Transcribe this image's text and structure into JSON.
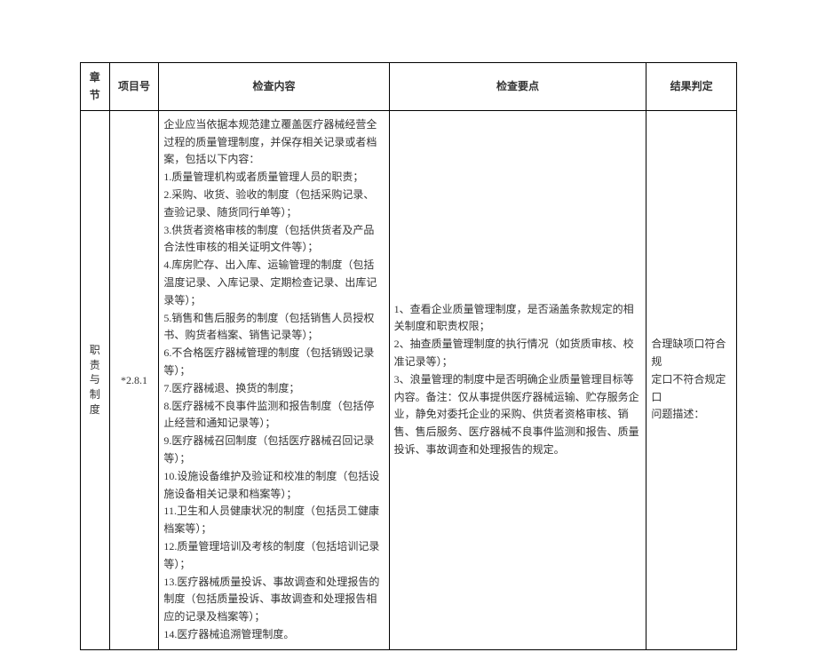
{
  "headers": {
    "chapter": "章节",
    "itemNo": "项目号",
    "content": "检查内容",
    "points": "检查要点",
    "result": "结果判定"
  },
  "row": {
    "chapter_c1": "职",
    "chapter_c2": "责",
    "chapter_c3": "与",
    "chapter_c4": "制",
    "chapter_c5": "度",
    "itemNo": "*2.8.1",
    "content_intro": "企业应当依据本规范建立覆盖医疗器械经营全过程的质量管理制度，并保存相关记录或者档案，包括以下内容：",
    "content_1": "1.质量管理机构或者质量管理人员的职责；",
    "content_2": "2.采购、收货、验收的制度（包括采购记录、查验记录、随货同行单等）；",
    "content_3": "3.供货者资格审核的制度（包括供货者及产品合法性审核的相关证明文件等）；",
    "content_4": "4.库房贮存、出入库、运输管理的制度（包括温度记录、入库记录、定期检查记录、出库记录等）；",
    "content_5": "5.销售和售后服务的制度（包括销售人员授权书、购货者档案、销售记录等）；",
    "content_6": "6.不合格医疗器械管理的制度（包括销毁记录等）；",
    "content_7": "7.医疗器械退、换货的制度；",
    "content_8": "8.医疗器械不良事件监测和报告制度（包括停止经营和通知记录等）；",
    "content_9": "9.医疗器械召回制度（包括医疗器械召回记录等）；",
    "content_10": "10.设施设备维护及验证和校准的制度（包括设施设备相关记录和档案等）；",
    "content_11": "11.卫生和人员健康状况的制度（包括员工健康档案等）；",
    "content_12": "12.质量管理培训及考核的制度（包括培训记录等）；",
    "content_13": "13.医疗器械质量投诉、事故调查和处理报告的制度（包括质量投诉、事故调查和处理报告相应的记录及档案等）；",
    "content_14": "14.医疗器械追溯管理制度。",
    "points_1": "1、查看企业质量管理制度，是否涵盖条款规定的相关制度和职责权限；",
    "points_2": "2、抽查质量管理制度的执行情况（如货质审核、校准记录等）；",
    "points_3": "3、浪量管理的制度中是否明确企业质量管理目标等内容。备注：仅从事提供医疗器械运输、贮存服务企业，静免对委托企业的采购、供货者资格审核、销售、售后服务、医疗器械不良事件监测和报告、质量投诉、事故调查和处理报告的规定。",
    "result_l1": "合理缺项口符合规",
    "result_l2": "定口不符合规定口",
    "result_l3": "问题描述："
  }
}
